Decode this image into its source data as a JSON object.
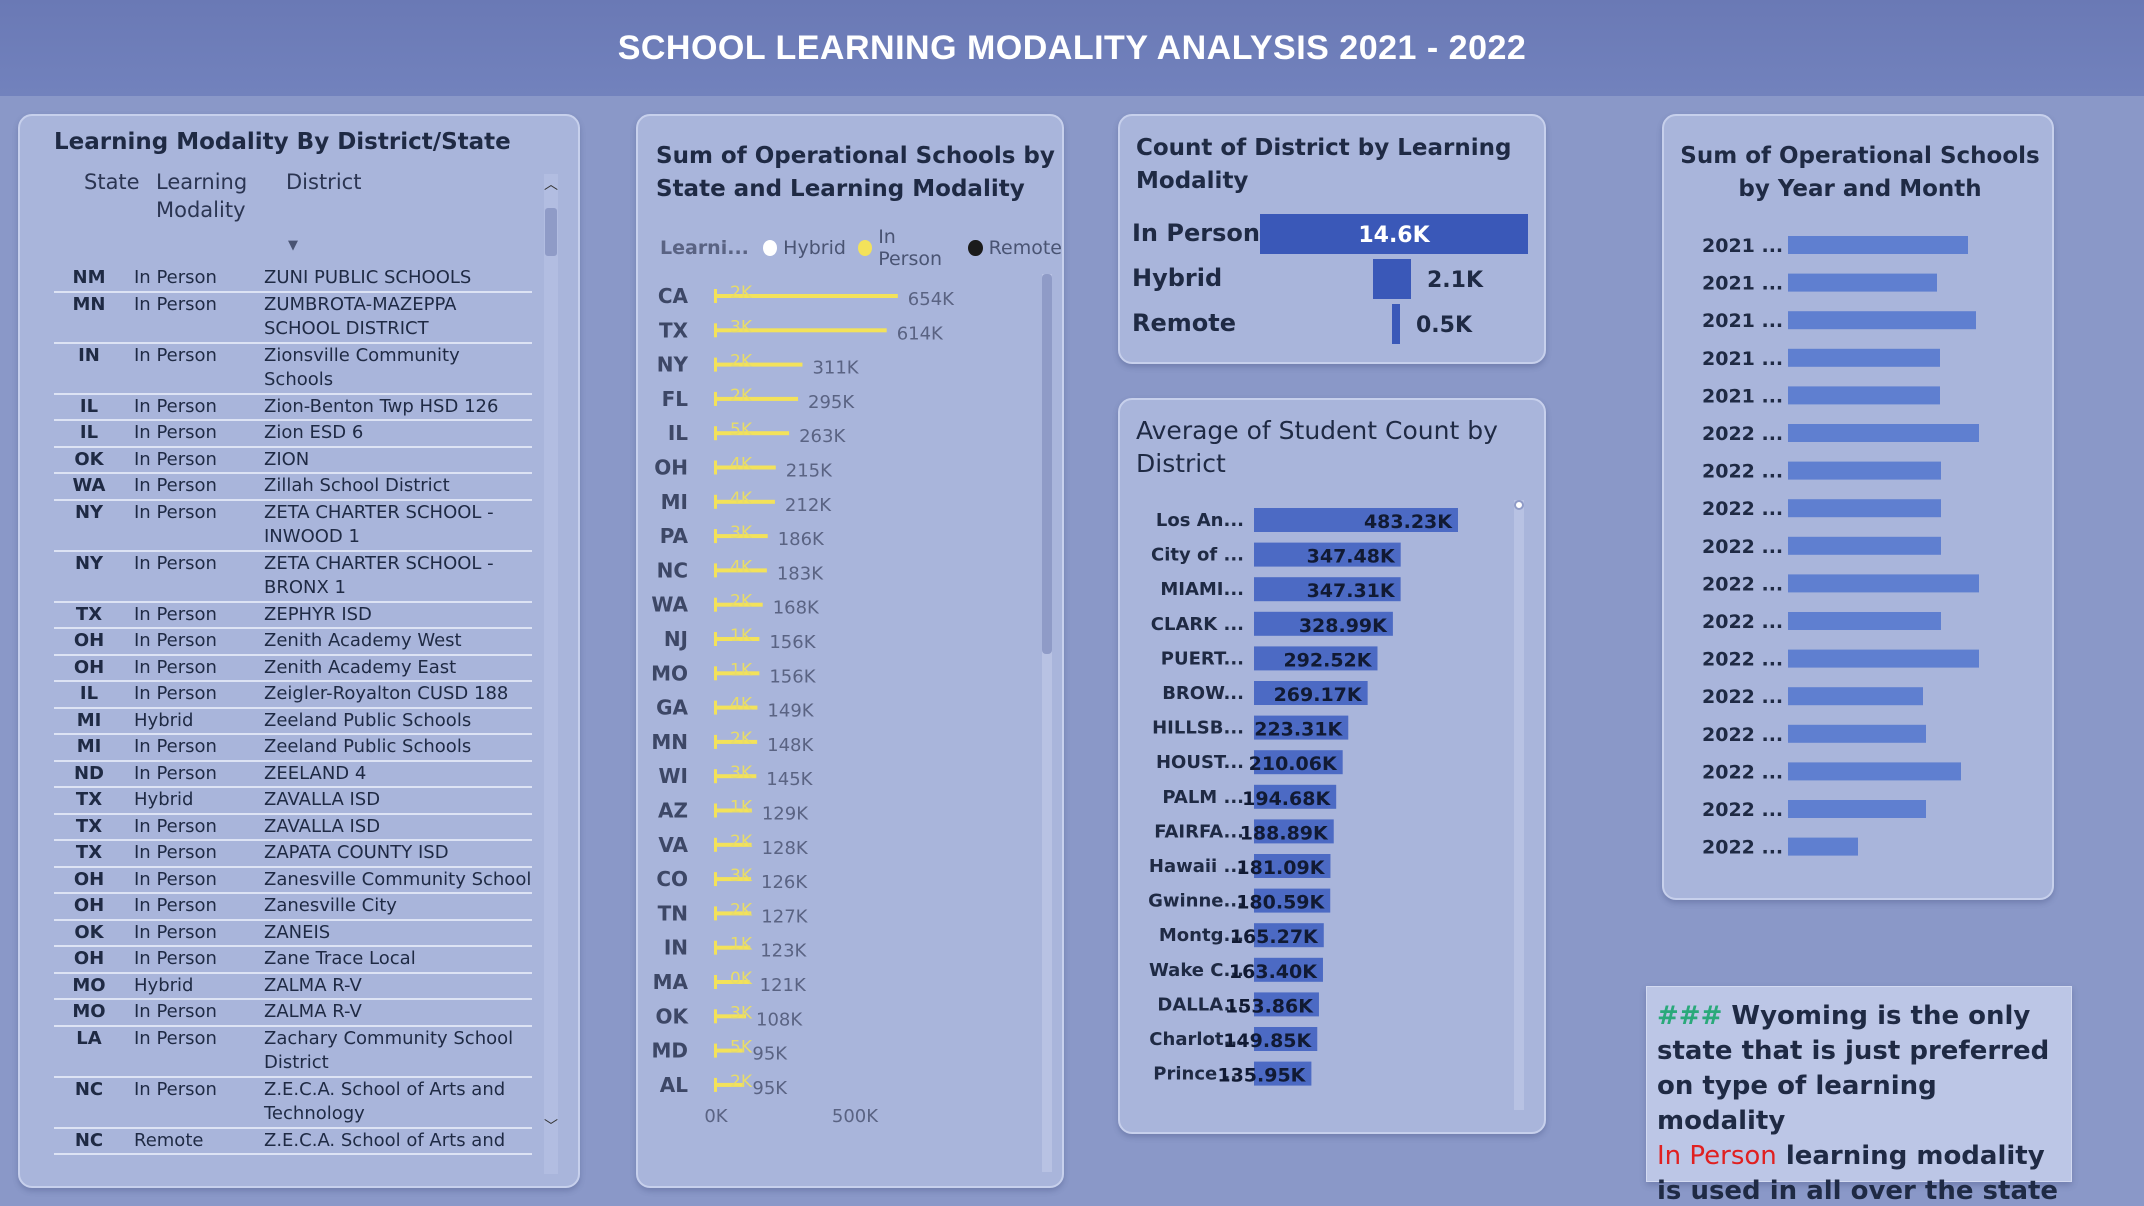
{
  "page_title": "SCHOOL LEARNING MODALITY ANALYSIS 2021 - 2022",
  "colors": {
    "header": "#6a79b5",
    "panel": "#a9b5db",
    "bar_blue": "#3a58b8",
    "in_person_yellow": "#f3e25a",
    "hybrid_white": "#ffffff",
    "remote_black": "#1b1b1b",
    "highlight_red": "#e02020"
  },
  "table": {
    "title": "Learning Modality By District/State",
    "columns": {
      "state": "State",
      "modality": "Learning Modality",
      "district": "District"
    },
    "sort_icon": "sort-descending-icon",
    "rows": [
      {
        "state": "NM",
        "modality": "In Person",
        "district": "ZUNI PUBLIC SCHOOLS"
      },
      {
        "state": "MN",
        "modality": "In Person",
        "district": "ZUMBROTA-MAZEPPA SCHOOL DISTRICT"
      },
      {
        "state": "IN",
        "modality": "In Person",
        "district": "Zionsville Community Schools"
      },
      {
        "state": "IL",
        "modality": "In Person",
        "district": "Zion-Benton Twp HSD 126"
      },
      {
        "state": "IL",
        "modality": "In Person",
        "district": "Zion ESD 6"
      },
      {
        "state": "OK",
        "modality": "In Person",
        "district": "ZION"
      },
      {
        "state": "WA",
        "modality": "In Person",
        "district": "Zillah School District"
      },
      {
        "state": "NY",
        "modality": "In Person",
        "district": "ZETA CHARTER SCHOOL - INWOOD 1"
      },
      {
        "state": "NY",
        "modality": "In Person",
        "district": "ZETA CHARTER SCHOOL - BRONX 1"
      },
      {
        "state": "TX",
        "modality": "In Person",
        "district": "ZEPHYR ISD"
      },
      {
        "state": "OH",
        "modality": "In Person",
        "district": "Zenith Academy West"
      },
      {
        "state": "OH",
        "modality": "In Person",
        "district": "Zenith Academy East"
      },
      {
        "state": "IL",
        "modality": "In Person",
        "district": "Zeigler-Royalton CUSD 188"
      },
      {
        "state": "MI",
        "modality": "Hybrid",
        "district": "Zeeland Public Schools"
      },
      {
        "state": "MI",
        "modality": "In Person",
        "district": "Zeeland Public Schools"
      },
      {
        "state": "ND",
        "modality": "In Person",
        "district": "ZEELAND 4"
      },
      {
        "state": "TX",
        "modality": "Hybrid",
        "district": "ZAVALLA ISD"
      },
      {
        "state": "TX",
        "modality": "In Person",
        "district": "ZAVALLA ISD"
      },
      {
        "state": "TX",
        "modality": "In Person",
        "district": "ZAPATA COUNTY ISD"
      },
      {
        "state": "OH",
        "modality": "In Person",
        "district": "Zanesville Community School"
      },
      {
        "state": "OH",
        "modality": "In Person",
        "district": "Zanesville City"
      },
      {
        "state": "OK",
        "modality": "In Person",
        "district": "ZANEIS"
      },
      {
        "state": "OH",
        "modality": "In Person",
        "district": "Zane Trace Local"
      },
      {
        "state": "MO",
        "modality": "Hybrid",
        "district": "ZALMA R-V"
      },
      {
        "state": "MO",
        "modality": "In Person",
        "district": "ZALMA R-V"
      },
      {
        "state": "LA",
        "modality": "In Person",
        "district": "Zachary Community School District"
      },
      {
        "state": "NC",
        "modality": "In Person",
        "district": "Z.E.C.A. School of Arts and Technology"
      },
      {
        "state": "NC",
        "modality": "Remote",
        "district": "Z.E.C.A. School of Arts and"
      }
    ]
  },
  "state_chart": {
    "title_line1": "Sum of Operational Schools by",
    "title_line2": "State and Learning Modality",
    "legend_label": "Learni...",
    "legend": [
      "Hybrid",
      "In Person",
      "Remote"
    ],
    "x_ticks": [
      "0K",
      "500K"
    ]
  },
  "district_modality": {
    "title_line1": "Count of District by Learning",
    "title_line2": "Modality"
  },
  "avg_student": {
    "title_line1": "Average of Student Count by",
    "title_line2": "District"
  },
  "year_month": {
    "title_line1": "Sum of Operational Schools",
    "title_line2": "by Year and Month"
  },
  "chart_data": [
    {
      "type": "bar",
      "orientation": "horizontal",
      "title": "Sum of Operational Schools by State and Learning Modality",
      "legend_title": "Learni...",
      "series_names": [
        "Hybrid",
        "In Person",
        "Remote"
      ],
      "categories": [
        "CA",
        "TX",
        "NY",
        "FL",
        "IL",
        "OH",
        "MI",
        "PA",
        "NC",
        "WA",
        "NJ",
        "MO",
        "GA",
        "MN",
        "WI",
        "AZ",
        "VA",
        "CO",
        "TN",
        "IN",
        "MA",
        "OK",
        "MD",
        "AL"
      ],
      "in_person": [
        654000,
        614000,
        311000,
        295000,
        263000,
        215000,
        212000,
        186000,
        183000,
        168000,
        156000,
        156000,
        149000,
        148000,
        145000,
        129000,
        128000,
        126000,
        127000,
        123000,
        121000,
        108000,
        95000,
        95000
      ],
      "in_person_labels": [
        "654K",
        "614K",
        "311K",
        "295K",
        "263K",
        "215K",
        "212K",
        "186K",
        "183K",
        "168K",
        "156K",
        "156K",
        "149K",
        "148K",
        "145K",
        "129K",
        "128K",
        "126K",
        "127K",
        "123K",
        "121K",
        "108K",
        "95K",
        "95K"
      ],
      "hybrid_labels": [
        "2K",
        "3K",
        "2K",
        "2K",
        "5K",
        "4K",
        "4K",
        "3K",
        "4K",
        "2K",
        "1K",
        "1K",
        "4K",
        "2K",
        "3K",
        "1K",
        "2K",
        "3K",
        "2K",
        "1K",
        "0K",
        "3K",
        "5K",
        "2K"
      ],
      "xlim": [
        0,
        800000
      ],
      "x_ticks": [
        "0K",
        "500K"
      ]
    },
    {
      "type": "bar",
      "orientation": "horizontal",
      "title": "Count of District by Learning Modality",
      "categories": [
        "In Person",
        "Hybrid",
        "Remote"
      ],
      "values": [
        14600,
        2100,
        500
      ],
      "labels": [
        "14.6K",
        "2.1K",
        "0.5K"
      ]
    },
    {
      "type": "bar",
      "orientation": "horizontal",
      "title": "Average of Student Count by District",
      "categories": [
        "Los An...",
        "City of ...",
        "MIAMI...",
        "CLARK ...",
        "PUERT...",
        "BROW...",
        "HILLSB...",
        "HOUST...",
        "PALM ...",
        "FAIRFA...",
        "Hawaii ...",
        "Gwinne...",
        "Montg...",
        "Wake C...",
        "DALLA...",
        "Charlot...",
        "Prince ..."
      ],
      "values": [
        483230,
        347480,
        347310,
        328990,
        292520,
        269170,
        223310,
        210060,
        194680,
        188890,
        181090,
        180590,
        165270,
        163400,
        153860,
        149850,
        135950
      ],
      "labels": [
        "483.23K",
        "347.48K",
        "347.31K",
        "328.99K",
        "292.52K",
        "269.17K",
        "223.31K",
        "210.06K",
        "194.68K",
        "188.89K",
        "181.09K",
        "180.59K",
        "165.27K",
        "163.40K",
        "153.86K",
        "149.85K",
        "135.95K"
      ]
    },
    {
      "type": "bar",
      "orientation": "horizontal",
      "title": "Sum of Operational Schools by Year and Month",
      "categories": [
        "2021 ...",
        "2021 ...",
        "2021 ...",
        "2021 ...",
        "2021 ...",
        "2022 ...",
        "2022 ...",
        "2022 ...",
        "2022 ...",
        "2022 ...",
        "2022 ...",
        "2022 ...",
        "2022 ...",
        "2022 ...",
        "2022 ...",
        "2022 ...",
        "2022 ..."
      ],
      "values": [
        180,
        149,
        188,
        152,
        152,
        191,
        153,
        153,
        153,
        191,
        153,
        191,
        135,
        138,
        173,
        138,
        70
      ]
    }
  ],
  "note": {
    "hashes": "###",
    "line1": "Wyoming is the only state that is just preferred on type of learning modality",
    "highlight": "In Person",
    "line2": "learning modality is used in all over the state"
  }
}
